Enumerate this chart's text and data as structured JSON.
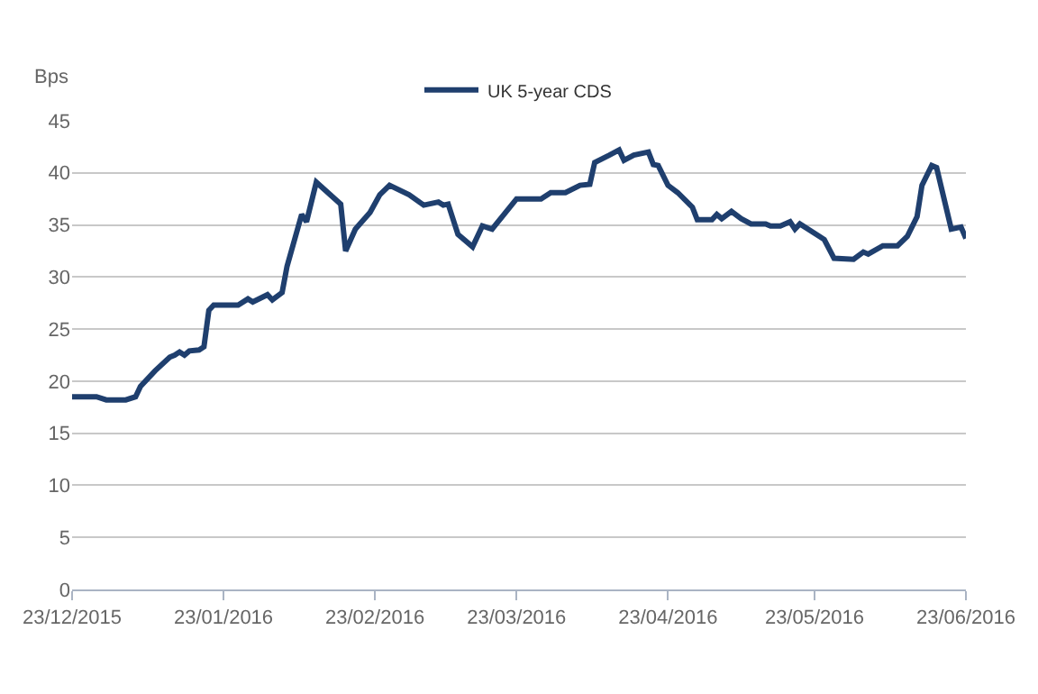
{
  "chart_data": {
    "type": "line",
    "ylabel": "Bps",
    "x": [
      "2015-12-23",
      "2015-12-28",
      "2015-12-30",
      "2016-01-03",
      "2016-01-05",
      "2016-01-06",
      "2016-01-09",
      "2016-01-12",
      "2016-01-13",
      "2016-01-14",
      "2016-01-15",
      "2016-01-16",
      "2016-01-18",
      "2016-01-19",
      "2016-01-20",
      "2016-01-21",
      "2016-01-26",
      "2016-01-28",
      "2016-01-29",
      "2016-02-01",
      "2016-02-02",
      "2016-02-04",
      "2016-02-05",
      "2016-02-08",
      "2016-02-09",
      "2016-02-11",
      "2016-02-16",
      "2016-02-17",
      "2016-02-19",
      "2016-02-22",
      "2016-02-24",
      "2016-02-26",
      "2016-03-01",
      "2016-03-04",
      "2016-03-07",
      "2016-03-08",
      "2016-03-09",
      "2016-03-11",
      "2016-03-14",
      "2016-03-16",
      "2016-03-18",
      "2016-03-23",
      "2016-03-28",
      "2016-03-30",
      "2016-04-02",
      "2016-04-05",
      "2016-04-07",
      "2016-04-08",
      "2016-04-11",
      "2016-04-13",
      "2016-04-14",
      "2016-04-16",
      "2016-04-19",
      "2016-04-20",
      "2016-04-21",
      "2016-04-23",
      "2016-04-25",
      "2016-04-28",
      "2016-04-29",
      "2016-05-02",
      "2016-05-03",
      "2016-05-04",
      "2016-05-06",
      "2016-05-08",
      "2016-05-10",
      "2016-05-13",
      "2016-05-14",
      "2016-05-16",
      "2016-05-18",
      "2016-05-19",
      "2016-05-20",
      "2016-05-24",
      "2016-05-25",
      "2016-05-27",
      "2016-05-31",
      "2016-06-02",
      "2016-06-03",
      "2016-06-06",
      "2016-06-09",
      "2016-06-11",
      "2016-06-13",
      "2016-06-14",
      "2016-06-16",
      "2016-06-17",
      "2016-06-20",
      "2016-06-22",
      "2016-06-23"
    ],
    "series": [
      {
        "name": "UK 5-year CDS",
        "color": "#1f3f6e",
        "values": [
          18.5,
          18.5,
          18.2,
          18.2,
          18.5,
          19.5,
          21,
          22.3,
          22.5,
          22.8,
          22.5,
          22.9,
          23,
          23.3,
          26.8,
          27.3,
          27.3,
          27.9,
          27.6,
          28.3,
          27.8,
          28.5,
          31,
          36,
          35.3,
          39.1,
          37.0,
          32.5,
          34.6,
          36.2,
          37.9,
          38.8,
          37.9,
          36.9,
          37.2,
          36.9,
          37.0,
          34.1,
          32.9,
          34.9,
          34.6,
          37.5,
          37.5,
          38.1,
          38.1,
          38.8,
          38.9,
          41.0,
          41.7,
          42.2,
          41.2,
          41.7,
          42.0,
          40.8,
          40.7,
          38.8,
          38.1,
          36.7,
          35.5,
          35.5,
          36.0,
          35.6,
          36.3,
          35.6,
          35.1,
          35.1,
          34.9,
          34.9,
          35.3,
          34.6,
          35.1,
          33.9,
          33.6,
          31.8,
          31.7,
          32.4,
          32.2,
          33.0,
          33.0,
          33.9,
          35.8,
          38.8,
          40.7,
          40.5,
          34.6,
          34.8,
          33.7
        ]
      }
    ],
    "xlim": [
      "2015-12-23",
      "2016-06-23"
    ],
    "xticks": [
      {
        "value": "2015-12-23",
        "label": "23/12/2015"
      },
      {
        "value": "2016-01-23",
        "label": "23/01/2016"
      },
      {
        "value": "2016-02-23",
        "label": "23/02/2016"
      },
      {
        "value": "2016-03-23",
        "label": "23/03/2016"
      },
      {
        "value": "2016-04-23",
        "label": "23/04/2016"
      },
      {
        "value": "2016-05-23",
        "label": "23/05/2016"
      },
      {
        "value": "2016-06-23",
        "label": "23/06/2016"
      }
    ],
    "ylim": [
      0,
      45
    ],
    "yticks": [
      0,
      5,
      10,
      15,
      20,
      25,
      30,
      35,
      40,
      45
    ],
    "grid": "y",
    "legend": "top",
    "marker": "none",
    "line_style": "solid"
  }
}
